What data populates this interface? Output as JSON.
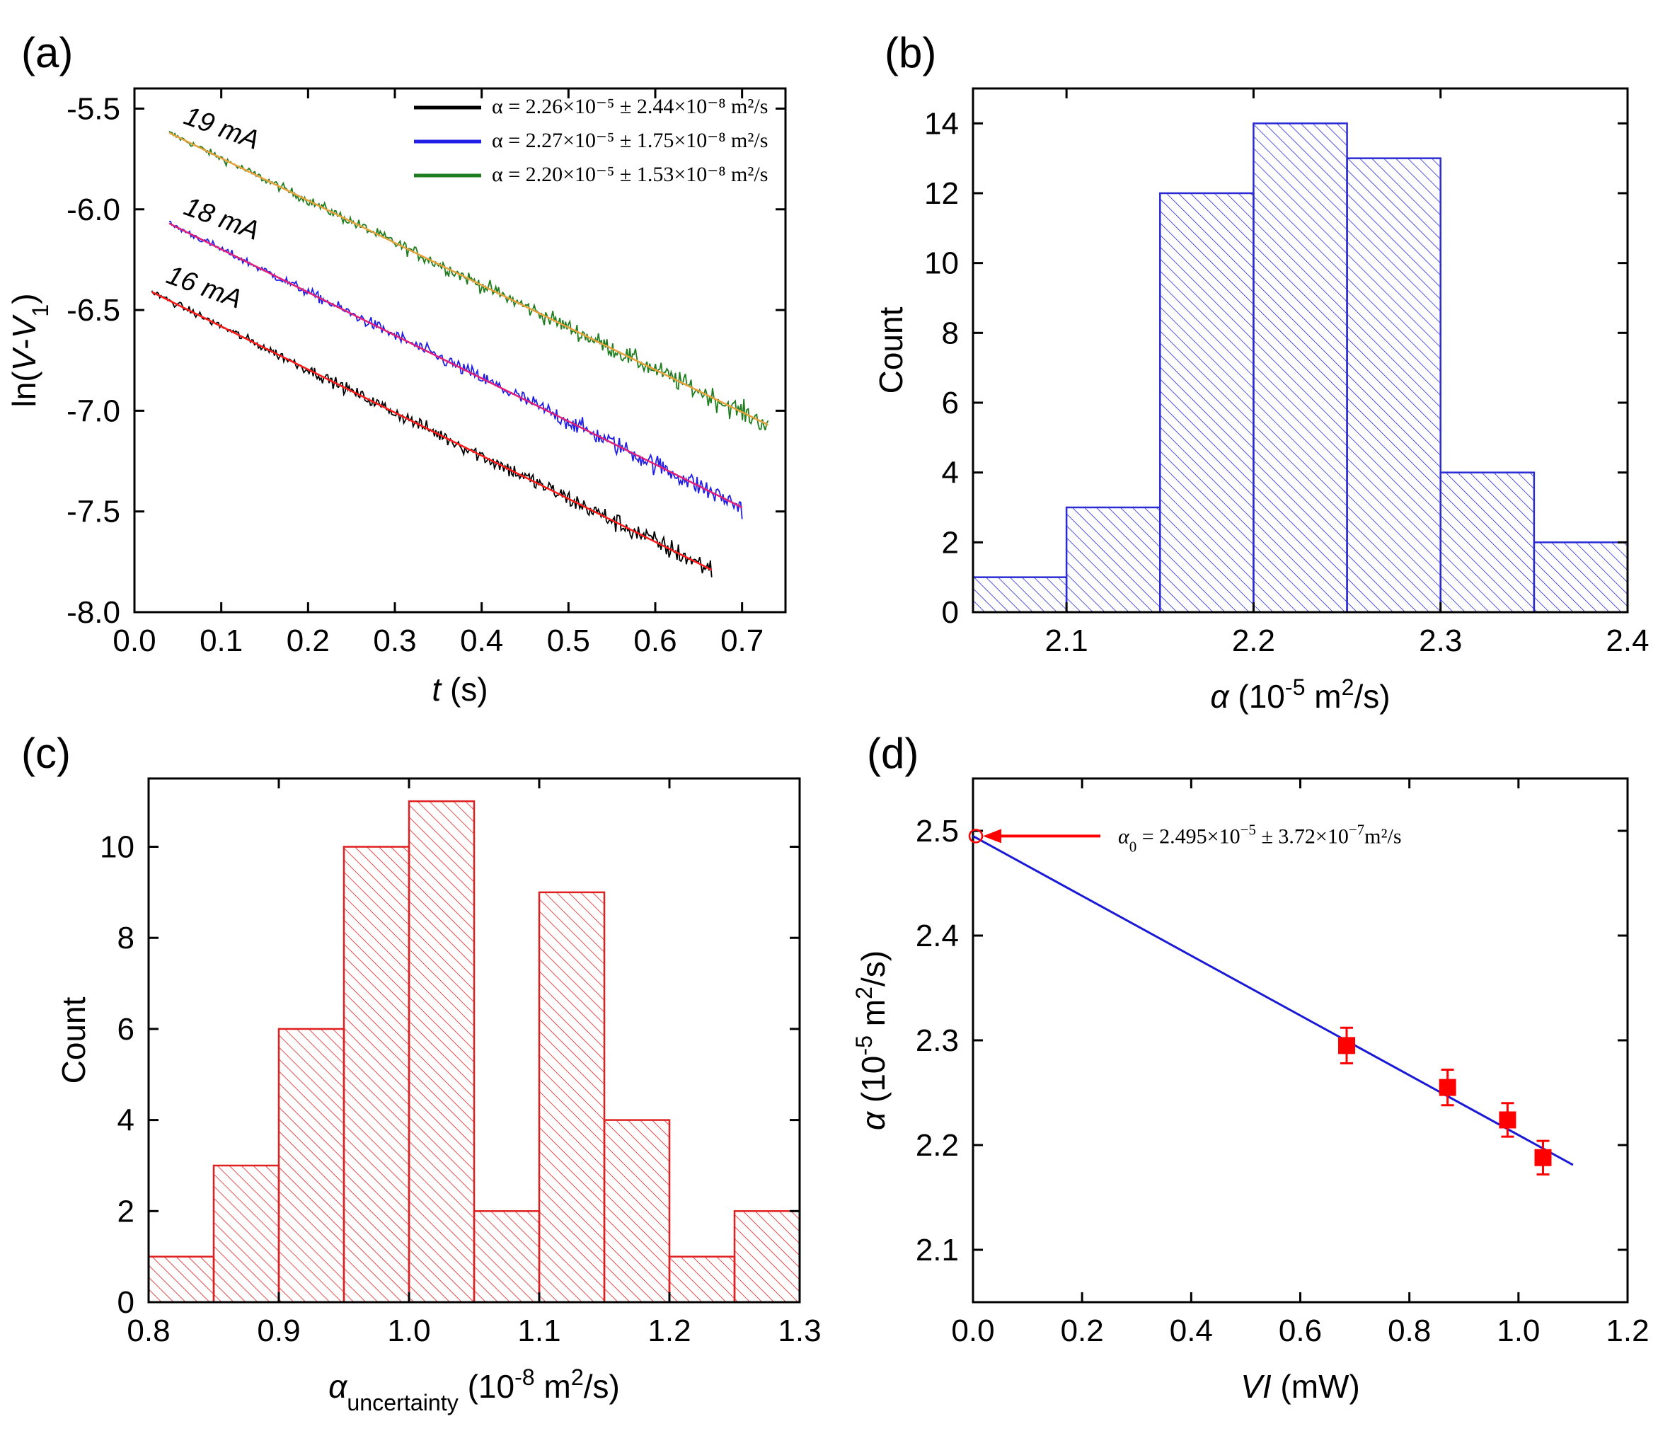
{
  "colors": {
    "black_series": "#000000",
    "blue_series": "#1f1fe6",
    "green_series": "#1e7d1e",
    "fit_red": "#ff1a1a",
    "fit_magenta": "#e0207a",
    "fit_orange": "#e6a23c",
    "hist_blue": "#2b2bd6",
    "hist_red": "#e02020",
    "points_red": "#ff0000",
    "fit_line_blue": "#1a1ad6"
  },
  "chart_data": [
    {
      "panel": "(a)",
      "type": "line",
      "xlabel_italic": "t",
      "xlabel_rest": " (s)",
      "ylabel": "ln(V-V1)",
      "xlim": [
        0.0,
        0.75
      ],
      "ylim": [
        -8.0,
        -5.4
      ],
      "xticks": [
        "0.0",
        "0.1",
        "0.2",
        "0.3",
        "0.4",
        "0.5",
        "0.6",
        "0.7"
      ],
      "yticks": [
        "-5.5",
        "-6.0",
        "-6.5",
        "-7.0",
        "-7.5",
        "-8.0"
      ],
      "legend_position": "top-right",
      "legend": [
        {
          "text": "α = 2.26×10⁻⁵ ± 2.44×10⁻⁸ m²/s",
          "color": "#000000"
        },
        {
          "text": "α = 2.27×10⁻⁵ ± 1.75×10⁻⁸ m²/s",
          "color": "#1f1fe6"
        },
        {
          "text": "α = 2.20×10⁻⁵ ± 1.53×10⁻⁸ m²/s",
          "color": "#1e7d1e"
        }
      ],
      "series": [
        {
          "label": "19 mA",
          "color": "#1e7d1e",
          "fit_color": "#e6a23c",
          "x_start": 0.04,
          "y_start": -5.62,
          "x_end": 0.73,
          "y_end": -7.07
        },
        {
          "label": "18 mA",
          "color": "#1f1fe6",
          "fit_color": "#e0207a",
          "x_start": 0.04,
          "y_start": -6.07,
          "x_end": 0.7,
          "y_end": -7.48
        },
        {
          "label": "16 mA",
          "color": "#000000",
          "fit_color": "#ff1a1a",
          "x_start": 0.02,
          "y_start": -6.41,
          "x_end": 0.665,
          "y_end": -7.79
        }
      ]
    },
    {
      "panel": "(b)",
      "type": "bar",
      "xlabel": "α (10⁻⁵ m²/s)",
      "ylabel": "Count",
      "xlim": [
        2.05,
        2.4
      ],
      "ylim": [
        0,
        15
      ],
      "xticks": [
        "2.1",
        "2.2",
        "2.3",
        "2.4"
      ],
      "yticks": [
        "0",
        "2",
        "4",
        "6",
        "8",
        "10",
        "12",
        "14"
      ],
      "bin_edges": [
        2.05,
        2.1,
        2.15,
        2.2,
        2.25,
        2.3,
        2.35,
        2.4
      ],
      "values": [
        1,
        3,
        12,
        14,
        13,
        4,
        2
      ]
    },
    {
      "panel": "(c)",
      "type": "bar",
      "xlabel": "α_uncertainty (10⁻⁸ m²/s)",
      "ylabel": "Count",
      "xlim": [
        0.8,
        1.3
      ],
      "ylim": [
        0,
        11.5
      ],
      "xticks": [
        "0.8",
        "0.9",
        "1.0",
        "1.1",
        "1.2",
        "1.3"
      ],
      "yticks": [
        "0",
        "2",
        "4",
        "6",
        "8",
        "10"
      ],
      "bin_edges": [
        0.8,
        0.85,
        0.9,
        0.95,
        1.0,
        1.05,
        1.1,
        1.15,
        1.2,
        1.25,
        1.3
      ],
      "values": [
        1,
        3,
        6,
        10,
        11,
        2,
        9,
        4,
        1,
        2
      ]
    },
    {
      "panel": "(d)",
      "type": "scatter",
      "xlabel": "VI (mW)",
      "ylabel": "α (10⁻⁵ m²/s)",
      "xlim": [
        0.0,
        1.2
      ],
      "ylim": [
        2.05,
        2.55
      ],
      "xticks": [
        "0.0",
        "0.2",
        "0.4",
        "0.6",
        "0.8",
        "1.0",
        "1.2"
      ],
      "yticks": [
        "2.1",
        "2.2",
        "2.3",
        "2.4",
        "2.5"
      ],
      "points": [
        {
          "x": 0.685,
          "y": 2.295,
          "err": 0.017
        },
        {
          "x": 0.87,
          "y": 2.255,
          "err": 0.017
        },
        {
          "x": 0.98,
          "y": 2.224,
          "err": 0.016
        },
        {
          "x": 1.045,
          "y": 2.188,
          "err": 0.016
        }
      ],
      "fit_line": {
        "x0": 0.0,
        "y0": 2.495,
        "x1": 1.1,
        "y1": 2.181
      },
      "intercept_marker": {
        "x": 0.0,
        "y": 2.495
      },
      "annotation": "α₀ = 2.495×10⁻⁵ ± 3.72×10⁻⁷m²/s"
    }
  ]
}
